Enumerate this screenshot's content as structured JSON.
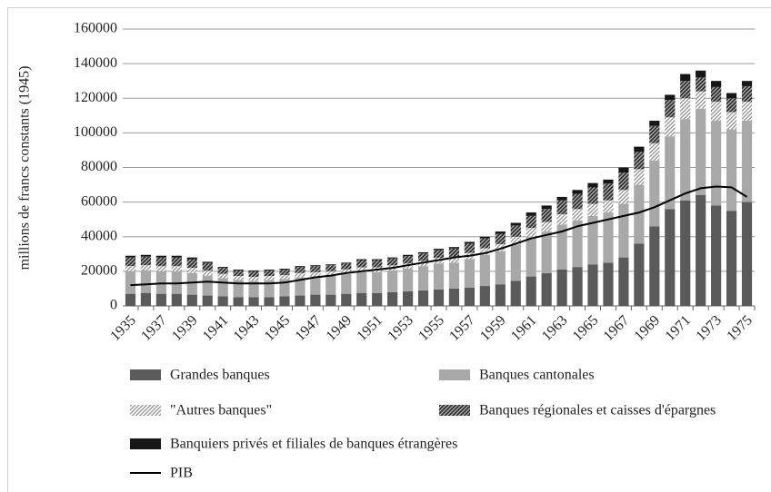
{
  "chart_data": {
    "type": "bar",
    "stacked": true,
    "y_label": "millions de francs constants (1945)",
    "categories": [
      "1935",
      null,
      "1937",
      null,
      "1939",
      null,
      "1941",
      null,
      "1943",
      null,
      "1945",
      null,
      "1947",
      null,
      "1949",
      null,
      "1951",
      null,
      "1953",
      null,
      "1955",
      null,
      "1957",
      null,
      "1959",
      null,
      "1961",
      null,
      "1963",
      null,
      "1965",
      null,
      "1967",
      null,
      "1969",
      null,
      "1971",
      null,
      "1973",
      null,
      "1975"
    ],
    "ylim": [
      0,
      160000
    ],
    "yticks": [
      0,
      20000,
      40000,
      60000,
      80000,
      100000,
      120000,
      140000,
      160000
    ],
    "grid": true,
    "legend": "bottom",
    "series": [
      {
        "name": "Grandes banques",
        "color": "#5a5a5a",
        "fill": "solid",
        "values": [
          7000,
          7500,
          7000,
          7000,
          6500,
          6000,
          5500,
          5000,
          5000,
          5000,
          5500,
          6000,
          6500,
          6500,
          7000,
          7500,
          7500,
          8000,
          8500,
          9000,
          9500,
          10000,
          10500,
          11500,
          12500,
          14500,
          17000,
          19000,
          21000,
          22500,
          24000,
          25000,
          28000,
          36000,
          46000,
          56000,
          61000,
          64000,
          58000,
          55000,
          60000
        ]
      },
      {
        "name": "Banques cantonales",
        "color": "#a8a8a8",
        "fill": "solid",
        "values": [
          13000,
          13000,
          13000,
          13000,
          12500,
          11500,
          10500,
          10000,
          9500,
          10000,
          10000,
          10500,
          10500,
          11000,
          11500,
          12000,
          12000,
          12500,
          13000,
          14000,
          15000,
          15000,
          16500,
          18000,
          19000,
          21000,
          23000,
          24000,
          26000,
          27000,
          28000,
          29000,
          31000,
          34000,
          38000,
          42000,
          47000,
          50000,
          49000,
          47000,
          47000
        ]
      },
      {
        "name": "\"Autres banques\"",
        "color": "#8a8a8a",
        "fill": "hatch-light",
        "values": [
          3000,
          3000,
          3000,
          3000,
          3000,
          2800,
          2500,
          2300,
          2300,
          2300,
          2300,
          2500,
          2500,
          2500,
          2600,
          2800,
          2800,
          2900,
          3000,
          3000,
          3200,
          3400,
          3600,
          3800,
          4200,
          4500,
          5000,
          5500,
          6000,
          6500,
          7000,
          7000,
          8000,
          9000,
          10000,
          11000,
          12000,
          10000,
          11000,
          10000,
          11000
        ]
      },
      {
        "name": "Banques régionales et caisses d'épargnes",
        "color": "#2a2a2a",
        "fill": "hatch-dark",
        "values": [
          5000,
          5000,
          5000,
          5000,
          5000,
          4500,
          3500,
          3200,
          3200,
          3200,
          3200,
          3500,
          3500,
          3500,
          3400,
          4200,
          4200,
          4000,
          4300,
          4400,
          4600,
          4800,
          5400,
          5800,
          6000,
          6500,
          7000,
          7500,
          8000,
          8800,
          9500,
          9700,
          10000,
          10000,
          10000,
          10000,
          10000,
          8000,
          8500,
          8000,
          9000
        ]
      },
      {
        "name": "Banquiers privés et filiales de banques étrangères",
        "color": "#161616",
        "fill": "solid",
        "values": [
          1000,
          1000,
          1000,
          1000,
          1000,
          700,
          500,
          500,
          500,
          500,
          500,
          500,
          500,
          500,
          500,
          500,
          500,
          600,
          700,
          600,
          700,
          800,
          1000,
          900,
          1300,
          1500,
          2000,
          2000,
          2000,
          2200,
          2500,
          2300,
          3000,
          3000,
          3000,
          3000,
          4000,
          4000,
          3500,
          3000,
          3000
        ]
      },
      {
        "name": "PIB",
        "color": "#000000",
        "type": "line",
        "values": [
          12000,
          12500,
          13000,
          13000,
          13500,
          14000,
          13500,
          13000,
          13000,
          13000,
          13500,
          15000,
          16500,
          17500,
          19000,
          20000,
          21000,
          22000,
          23500,
          25000,
          26500,
          28000,
          29000,
          30500,
          33000,
          36000,
          39000,
          41000,
          43000,
          46000,
          48000,
          50000,
          52000,
          54000,
          57000,
          61000,
          65000,
          68000,
          69000,
          68500,
          63000
        ]
      }
    ]
  }
}
